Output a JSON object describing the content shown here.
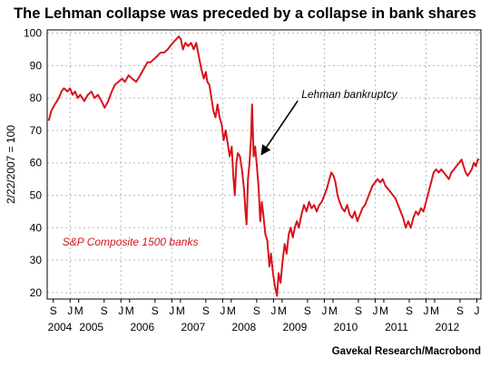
{
  "chart_data": {
    "type": "line",
    "title": "The Lehman collapse was preceded by a collapse in bank shares",
    "ylabel": "2/22/2007 = 100",
    "credit": "Gavekal Research/Macrobond",
    "ylim": [
      18,
      101
    ],
    "xlim": [
      2004.55,
      2013.08
    ],
    "yticks": [
      20,
      30,
      40,
      50,
      60,
      70,
      80,
      90,
      100
    ],
    "grid": true,
    "line_color": "#d7141e",
    "series": [
      {
        "name": "S&P Composite 1500 banks",
        "points": [
          [
            2004.58,
            73
          ],
          [
            2004.63,
            76
          ],
          [
            2004.7,
            78
          ],
          [
            2004.78,
            80
          ],
          [
            2004.83,
            82
          ],
          [
            2004.88,
            83
          ],
          [
            2004.95,
            82
          ],
          [
            2005.0,
            83
          ],
          [
            2005.05,
            81
          ],
          [
            2005.1,
            82
          ],
          [
            2005.15,
            80
          ],
          [
            2005.2,
            81
          ],
          [
            2005.28,
            79
          ],
          [
            2005.35,
            81
          ],
          [
            2005.42,
            82
          ],
          [
            2005.48,
            80
          ],
          [
            2005.55,
            81
          ],
          [
            2005.62,
            79
          ],
          [
            2005.68,
            77
          ],
          [
            2005.75,
            79
          ],
          [
            2005.82,
            82
          ],
          [
            2005.88,
            84
          ],
          [
            2005.95,
            85
          ],
          [
            2006.02,
            86
          ],
          [
            2006.08,
            85
          ],
          [
            2006.15,
            87
          ],
          [
            2006.22,
            86
          ],
          [
            2006.3,
            85
          ],
          [
            2006.38,
            87
          ],
          [
            2006.45,
            89
          ],
          [
            2006.52,
            91
          ],
          [
            2006.58,
            91
          ],
          [
            2006.65,
            92
          ],
          [
            2006.72,
            93
          ],
          [
            2006.78,
            94
          ],
          [
            2006.85,
            94
          ],
          [
            2006.92,
            95
          ],
          [
            2006.97,
            96
          ],
          [
            2007.02,
            97
          ],
          [
            2007.08,
            98
          ],
          [
            2007.14,
            99
          ],
          [
            2007.18,
            98
          ],
          [
            2007.22,
            95
          ],
          [
            2007.27,
            97
          ],
          [
            2007.32,
            96
          ],
          [
            2007.38,
            97
          ],
          [
            2007.43,
            95
          ],
          [
            2007.48,
            97
          ],
          [
            2007.53,
            93
          ],
          [
            2007.58,
            89
          ],
          [
            2007.63,
            86
          ],
          [
            2007.67,
            88
          ],
          [
            2007.7,
            85
          ],
          [
            2007.74,
            84
          ],
          [
            2007.78,
            80
          ],
          [
            2007.82,
            76
          ],
          [
            2007.86,
            74
          ],
          [
            2007.9,
            78
          ],
          [
            2007.94,
            74
          ],
          [
            2007.98,
            72
          ],
          [
            2008.02,
            67
          ],
          [
            2008.06,
            70
          ],
          [
            2008.1,
            66
          ],
          [
            2008.14,
            62
          ],
          [
            2008.18,
            65
          ],
          [
            2008.21,
            56
          ],
          [
            2008.24,
            50
          ],
          [
            2008.27,
            60
          ],
          [
            2008.3,
            63
          ],
          [
            2008.34,
            62
          ],
          [
            2008.38,
            58
          ],
          [
            2008.42,
            52
          ],
          [
            2008.45,
            45
          ],
          [
            2008.47,
            41
          ],
          [
            2008.5,
            55
          ],
          [
            2008.53,
            60
          ],
          [
            2008.56,
            68
          ],
          [
            2008.58,
            78
          ],
          [
            2008.61,
            62
          ],
          [
            2008.64,
            65
          ],
          [
            2008.68,
            58
          ],
          [
            2008.71,
            52
          ],
          [
            2008.74,
            42
          ],
          [
            2008.77,
            48
          ],
          [
            2008.8,
            44
          ],
          [
            2008.84,
            38
          ],
          [
            2008.88,
            36
          ],
          [
            2008.92,
            28
          ],
          [
            2008.95,
            32
          ],
          [
            2008.99,
            26
          ],
          [
            2009.03,
            22
          ],
          [
            2009.07,
            19
          ],
          [
            2009.1,
            26
          ],
          [
            2009.14,
            23
          ],
          [
            2009.18,
            30
          ],
          [
            2009.22,
            35
          ],
          [
            2009.26,
            32
          ],
          [
            2009.3,
            38
          ],
          [
            2009.34,
            40
          ],
          [
            2009.38,
            37
          ],
          [
            2009.42,
            40
          ],
          [
            2009.46,
            42
          ],
          [
            2009.5,
            40
          ],
          [
            2009.55,
            44
          ],
          [
            2009.6,
            47
          ],
          [
            2009.65,
            45
          ],
          [
            2009.7,
            48
          ],
          [
            2009.75,
            46
          ],
          [
            2009.8,
            47
          ],
          [
            2009.85,
            45
          ],
          [
            2009.9,
            47
          ],
          [
            2009.95,
            48
          ],
          [
            2010.0,
            50
          ],
          [
            2010.05,
            52
          ],
          [
            2010.1,
            55
          ],
          [
            2010.14,
            57
          ],
          [
            2010.18,
            56
          ],
          [
            2010.22,
            54
          ],
          [
            2010.26,
            50
          ],
          [
            2010.3,
            48
          ],
          [
            2010.35,
            46
          ],
          [
            2010.4,
            45
          ],
          [
            2010.45,
            47
          ],
          [
            2010.5,
            44
          ],
          [
            2010.55,
            43
          ],
          [
            2010.6,
            45
          ],
          [
            2010.65,
            42
          ],
          [
            2010.7,
            44
          ],
          [
            2010.75,
            46
          ],
          [
            2010.8,
            47
          ],
          [
            2010.85,
            49
          ],
          [
            2010.9,
            51
          ],
          [
            2010.95,
            53
          ],
          [
            2011.0,
            54
          ],
          [
            2011.05,
            55
          ],
          [
            2011.1,
            54
          ],
          [
            2011.15,
            55
          ],
          [
            2011.2,
            53
          ],
          [
            2011.25,
            52
          ],
          [
            2011.3,
            51
          ],
          [
            2011.35,
            50
          ],
          [
            2011.4,
            49
          ],
          [
            2011.45,
            47
          ],
          [
            2011.5,
            45
          ],
          [
            2011.55,
            43
          ],
          [
            2011.6,
            40
          ],
          [
            2011.65,
            42
          ],
          [
            2011.7,
            40
          ],
          [
            2011.75,
            43
          ],
          [
            2011.8,
            45
          ],
          [
            2011.85,
            44
          ],
          [
            2011.9,
            46
          ],
          [
            2011.95,
            45
          ],
          [
            2012.0,
            48
          ],
          [
            2012.05,
            51
          ],
          [
            2012.1,
            54
          ],
          [
            2012.15,
            57
          ],
          [
            2012.2,
            58
          ],
          [
            2012.25,
            57
          ],
          [
            2012.3,
            58
          ],
          [
            2012.35,
            57
          ],
          [
            2012.4,
            56
          ],
          [
            2012.45,
            55
          ],
          [
            2012.5,
            57
          ],
          [
            2012.55,
            58
          ],
          [
            2012.6,
            59
          ],
          [
            2012.65,
            60
          ],
          [
            2012.7,
            61
          ],
          [
            2012.74,
            59
          ],
          [
            2012.78,
            57
          ],
          [
            2012.82,
            56
          ],
          [
            2012.86,
            57
          ],
          [
            2012.9,
            58
          ],
          [
            2012.94,
            60
          ],
          [
            2012.98,
            59
          ],
          [
            2013.02,
            61
          ],
          [
            2013.05,
            61
          ]
        ]
      }
    ],
    "annotations": [
      {
        "text": "Lehman bankruptcy",
        "point": [
          2008.71,
          62
        ],
        "text_at": [
          2009.55,
          80
        ],
        "color": "#000000"
      },
      {
        "text": "S&P Composite 1500 banks",
        "text_at": [
          2004.85,
          34.5
        ],
        "color": "#d7141e"
      }
    ],
    "month_ticks": [
      {
        "label": "S",
        "x": 2004.67
      },
      {
        "label": "J",
        "x": 2005.0
      },
      {
        "label": "M",
        "x": 2005.17
      },
      {
        "label": "S",
        "x": 2005.67
      },
      {
        "label": "J",
        "x": 2006.0
      },
      {
        "label": "M",
        "x": 2006.17
      },
      {
        "label": "S",
        "x": 2006.67
      },
      {
        "label": "J",
        "x": 2007.0
      },
      {
        "label": "M",
        "x": 2007.17
      },
      {
        "label": "S",
        "x": 2007.67
      },
      {
        "label": "J",
        "x": 2008.0
      },
      {
        "label": "M",
        "x": 2008.17
      },
      {
        "label": "S",
        "x": 2008.67
      },
      {
        "label": "J",
        "x": 2009.0
      },
      {
        "label": "M",
        "x": 2009.17
      },
      {
        "label": "S",
        "x": 2009.67
      },
      {
        "label": "J",
        "x": 2010.0
      },
      {
        "label": "M",
        "x": 2010.17
      },
      {
        "label": "S",
        "x": 2010.67
      },
      {
        "label": "J",
        "x": 2011.0
      },
      {
        "label": "M",
        "x": 2011.17
      },
      {
        "label": "S",
        "x": 2011.67
      },
      {
        "label": "J",
        "x": 2012.0
      },
      {
        "label": "M",
        "x": 2012.17
      },
      {
        "label": "S",
        "x": 2012.67
      },
      {
        "label": "J",
        "x": 2013.0
      }
    ],
    "year_labels": [
      {
        "label": "2004",
        "x": 2004.8
      },
      {
        "label": "2005",
        "x": 2005.42
      },
      {
        "label": "2006",
        "x": 2006.42
      },
      {
        "label": "2007",
        "x": 2007.42
      },
      {
        "label": "2008",
        "x": 2008.42
      },
      {
        "label": "2009",
        "x": 2009.42
      },
      {
        "label": "2010",
        "x": 2010.42
      },
      {
        "label": "2011",
        "x": 2011.42
      },
      {
        "label": "2012",
        "x": 2012.42
      }
    ]
  }
}
